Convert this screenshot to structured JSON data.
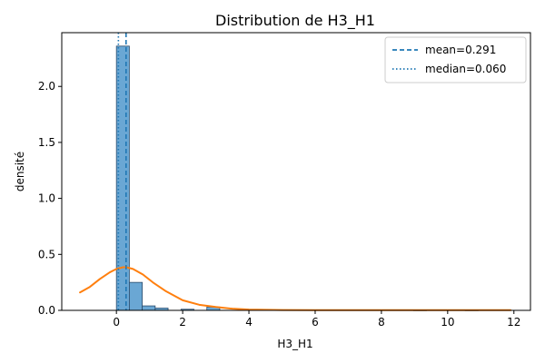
{
  "chart_data": {
    "type": "histogram",
    "title": "Distribution de H3_H1",
    "xlabel": "H3_H1",
    "ylabel": "densité",
    "xlim": [
      -1.65,
      12.5
    ],
    "ylim": [
      0,
      2.48
    ],
    "x_ticks": [
      0,
      2,
      4,
      6,
      8,
      10,
      12
    ],
    "y_ticks": [
      0.0,
      0.5,
      1.0,
      1.5,
      2.0
    ],
    "x_tick_labels": [
      "0",
      "2",
      "4",
      "6",
      "8",
      "10",
      "12"
    ],
    "y_tick_labels": [
      "0.0",
      "0.5",
      "1.0",
      "1.5",
      "2.0"
    ],
    "grid": false,
    "bins": {
      "start": 0.0,
      "width": 0.39,
      "densities": [
        2.36,
        0.25,
        0.04,
        0.02,
        0.0,
        0.01,
        0.0,
        0.03,
        0.0,
        0.0,
        0.0,
        0.0,
        0.0,
        0.0,
        0.0,
        0.0,
        0.0,
        0.0,
        0.0,
        0.0,
        0.0,
        0.0,
        0.0,
        0.004,
        0.0,
        0.0,
        0.0,
        0.004,
        0.0,
        0.0
      ]
    },
    "kde": {
      "x": [
        -1.1,
        -0.8,
        -0.5,
        -0.2,
        0.0,
        0.2,
        0.3,
        0.5,
        0.8,
        1.1,
        1.5,
        2.0,
        2.5,
        3.0,
        3.5,
        4.0,
        5.0,
        6.0,
        8.0,
        10.0,
        11.9
      ],
      "y": [
        0.16,
        0.21,
        0.28,
        0.34,
        0.37,
        0.385,
        0.385,
        0.37,
        0.32,
        0.25,
        0.17,
        0.09,
        0.05,
        0.03,
        0.015,
        0.007,
        0.003,
        0.002,
        0.002,
        0.002,
        0.002
      ]
    },
    "reference_lines": [
      {
        "name": "mean=0.291",
        "value": 0.291,
        "style": "dashed"
      },
      {
        "name": "median=0.060",
        "value": 0.06,
        "style": "dotted"
      }
    ],
    "legend_position": "top-right",
    "colors": {
      "bars": "#6aa7d4",
      "bar_edge": "#2a4a6a",
      "kde": "#ff7f0e",
      "reference": "#1f77b4"
    }
  }
}
